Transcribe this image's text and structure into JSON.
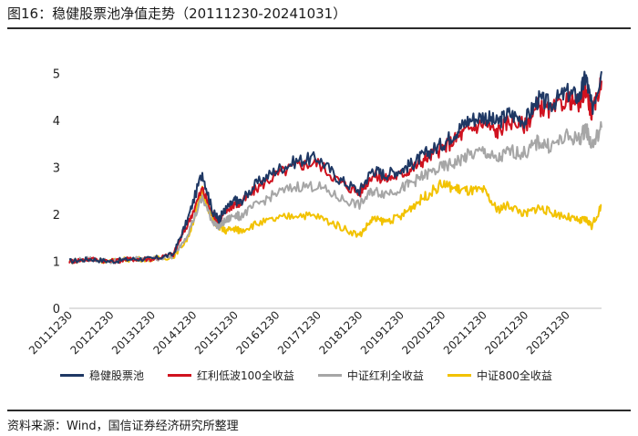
{
  "header": {
    "title": "图16：稳健股票池净值走势（20111230-20241031）"
  },
  "footer": {
    "source": "资料来源：Wind，国信证券经济研究所整理"
  },
  "colors": {
    "navy": "#1f3864",
    "red": "#d0121f",
    "gray": "#a6a6a6",
    "gold": "#f2c200"
  },
  "chart_data": {
    "type": "line",
    "title": "",
    "xlabel": "",
    "ylabel": "",
    "ylim": [
      0,
      5.5
    ],
    "yticks": [
      "0",
      "1",
      "2",
      "3",
      "4",
      "5"
    ],
    "x_tick_labels": [
      "20111230",
      "20121230",
      "20131230",
      "20141230",
      "20151230",
      "20161230",
      "20171230",
      "20181230",
      "20191230",
      "20201230",
      "20211230",
      "20221230",
      "20231230"
    ],
    "legend": "bottom",
    "x": [
      2011.99,
      2012.5,
      2012.99,
      2013.5,
      2013.99,
      2014.5,
      2014.85,
      2015.2,
      2015.45,
      2015.6,
      2015.75,
      2015.99,
      2016.1,
      2016.5,
      2016.99,
      2017.5,
      2017.99,
      2018.5,
      2018.99,
      2019.3,
      2019.6,
      2019.99,
      2020.3,
      2020.6,
      2020.99,
      2021.3,
      2021.6,
      2021.99,
      2022.3,
      2022.6,
      2022.99,
      2023.3,
      2023.6,
      2023.99,
      2024.3,
      2024.45,
      2024.6,
      2024.83
    ],
    "series": [
      {
        "name": "稳健股票池",
        "color_key": "navy",
        "values": [
          1.0,
          1.05,
          1.0,
          1.05,
          1.05,
          1.15,
          1.9,
          2.9,
          2.05,
          1.9,
          2.1,
          2.3,
          2.25,
          2.65,
          2.95,
          3.15,
          3.2,
          2.75,
          2.5,
          2.95,
          2.85,
          2.95,
          3.1,
          3.3,
          3.5,
          3.75,
          4.0,
          4.1,
          3.95,
          4.15,
          4.0,
          4.45,
          4.35,
          4.6,
          4.5,
          4.95,
          4.25,
          5.05
        ]
      },
      {
        "name": "红利低波100全收益",
        "color_key": "red",
        "values": [
          1.0,
          1.05,
          1.0,
          1.05,
          1.05,
          1.15,
          1.8,
          2.55,
          2.0,
          1.9,
          2.05,
          2.25,
          2.2,
          2.55,
          2.85,
          3.05,
          3.1,
          2.7,
          2.45,
          2.85,
          2.75,
          2.85,
          3.0,
          3.2,
          3.4,
          3.6,
          3.8,
          3.95,
          3.75,
          4.0,
          3.9,
          4.3,
          4.2,
          4.45,
          4.35,
          4.7,
          4.1,
          4.85
        ]
      },
      {
        "name": "中证红利全收益",
        "color_key": "gray",
        "values": [
          1.0,
          1.05,
          1.0,
          1.05,
          1.05,
          1.1,
          1.6,
          2.35,
          1.85,
          1.75,
          1.85,
          2.0,
          1.95,
          2.2,
          2.45,
          2.6,
          2.6,
          2.35,
          2.2,
          2.5,
          2.45,
          2.55,
          2.7,
          2.85,
          3.0,
          3.1,
          3.25,
          3.35,
          3.15,
          3.35,
          3.3,
          3.55,
          3.45,
          3.65,
          3.6,
          3.85,
          3.45,
          3.85
        ]
      },
      {
        "name": "中证800全收益",
        "color_key": "gold",
        "values": [
          1.0,
          1.05,
          1.0,
          1.05,
          1.05,
          1.1,
          1.5,
          2.5,
          1.9,
          1.75,
          1.65,
          1.7,
          1.65,
          1.8,
          1.9,
          2.0,
          1.95,
          1.75,
          1.55,
          1.9,
          1.85,
          1.95,
          2.2,
          2.4,
          2.65,
          2.55,
          2.5,
          2.5,
          2.1,
          2.2,
          2.0,
          2.15,
          2.05,
          1.95,
          1.85,
          1.9,
          1.75,
          2.2
        ]
      }
    ]
  }
}
